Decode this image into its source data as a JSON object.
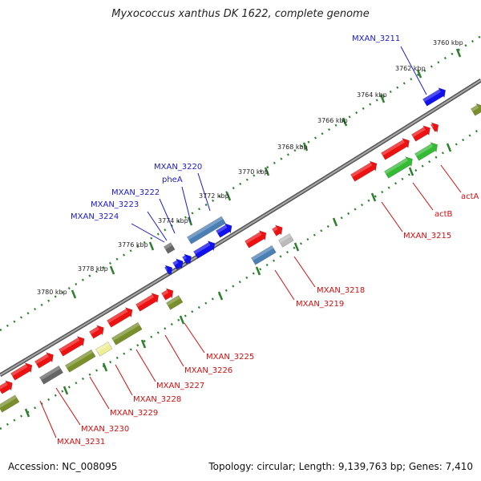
{
  "title": "Myxococcus xanthus DK 1622, complete genome",
  "footer": {
    "accession": "Accession: NC_008095",
    "summary": "Topology: circular; Length: 9,139,763 bp; Genes: 7,410"
  },
  "colors": {
    "backbone": "#8a8a8a",
    "tick_dots": "#2f7f2f",
    "label_forward": "#1a1acc",
    "label_reverse": "#cc1111",
    "gene_red": "#ee1111",
    "gene_blue": "#1111ee",
    "gene_steel": "#4a7fb5",
    "gene_green": "#33bb33",
    "gene_olive": "#7a8f2a",
    "gene_gray": "#666666",
    "gene_lightgray": "#bbbbbb",
    "gene_yellow": "#eeee99"
  },
  "scale_ticks": [
    "3760 kbp",
    "3762 kbp",
    "3764 kbp",
    "3766 kbp",
    "3768 kbp",
    "3770 kbp",
    "3772 kbp",
    "3774 kbp",
    "3776 kbp",
    "3778 kbp",
    "3780 kbp"
  ],
  "forward_labels": [
    "MXAN_3211",
    "MXAN_3220",
    "pheA",
    "MXAN_3222",
    "MXAN_3223",
    "MXAN_3224"
  ],
  "reverse_labels": [
    "actA",
    "actB",
    "MXAN_3215",
    "MXAN_3218",
    "MXAN_3219",
    "MXAN_3225",
    "MXAN_3226",
    "MXAN_3227",
    "MXAN_3228",
    "MXAN_3229",
    "MXAN_3230",
    "MXAN_3231"
  ]
}
